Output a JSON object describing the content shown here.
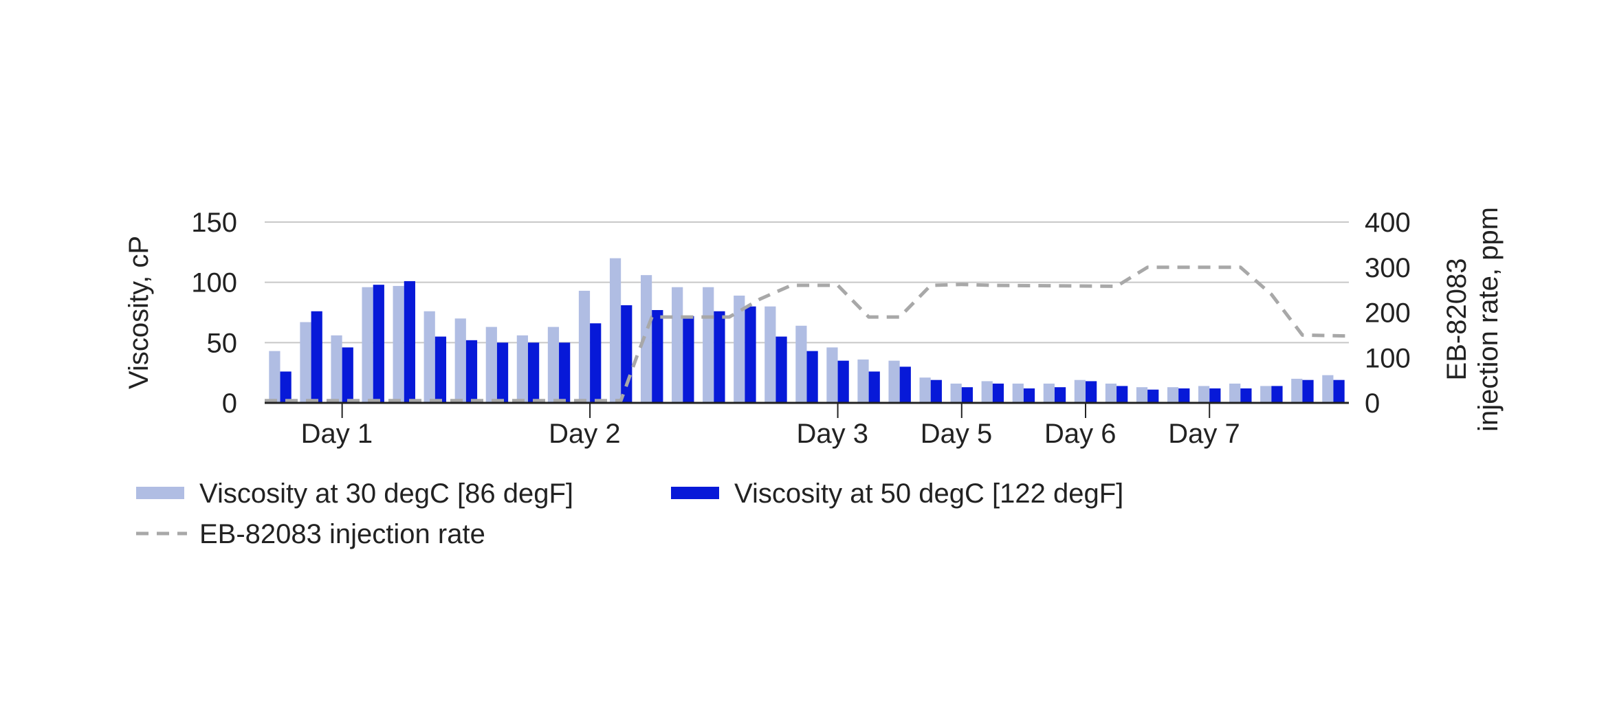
{
  "chart_data": {
    "type": "bar",
    "title": "",
    "x_tick_labels": [
      "Day 1",
      "Day 2",
      "Day 3",
      "Day 5",
      "Day 6",
      "Day 7"
    ],
    "x_tick_positions": [
      2.5,
      10.5,
      18.5,
      22.5,
      26.5,
      30.5
    ],
    "y_left": {
      "label": "Viscosity, cP",
      "range": [
        0,
        150
      ],
      "ticks": [
        0,
        50,
        100,
        150
      ],
      "tick_labels": [
        "0",
        "50",
        "100",
        "150"
      ]
    },
    "y_right": {
      "label_lines": [
        "EB-82083",
        "injection rate, ppm"
      ],
      "range": [
        0,
        400
      ],
      "ticks": [
        0,
        100,
        200,
        300,
        400
      ],
      "tick_labels": [
        "0",
        "100",
        "200",
        "300",
        "400"
      ]
    },
    "grid": {
      "horizontal": true,
      "vertical": false
    },
    "series": [
      {
        "name": "Viscosity at 30 degC [86 degF]",
        "type": "bar",
        "axis": "left",
        "color": "#b0bde3",
        "values": [
          43,
          67,
          56,
          96,
          97,
          76,
          70,
          63,
          56,
          63,
          93,
          120,
          106,
          96,
          96,
          89,
          80,
          64,
          46,
          36,
          35,
          21,
          16,
          18,
          16,
          16,
          19,
          16,
          13,
          13,
          14,
          16,
          14,
          20,
          23
        ]
      },
      {
        "name": "Viscosity at 50 degC [122 degF]",
        "type": "bar",
        "axis": "left",
        "color": "#0719d8",
        "values": [
          26,
          76,
          46,
          98,
          101,
          55,
          52,
          50,
          50,
          50,
          66,
          81,
          77,
          72,
          76,
          80,
          55,
          43,
          35,
          26,
          30,
          19,
          13,
          16,
          12,
          13,
          18,
          14,
          11,
          12,
          12,
          12,
          14,
          19,
          19
        ]
      },
      {
        "name": "EB-82083 injection rate",
        "type": "line",
        "style": "dashed",
        "axis": "right",
        "color": "#a8a8a8",
        "x": [
          0,
          11.5,
          12.0,
          12.5,
          15.0,
          16.0,
          17.0,
          18.5,
          19.5,
          20.5,
          21.5,
          22.5,
          23.5,
          27.5,
          28.5,
          31.5,
          32.5,
          33.5,
          35.0
        ],
        "values": [
          5,
          5,
          100,
          190,
          190,
          230,
          260,
          260,
          190,
          190,
          260,
          262,
          260,
          258,
          300,
          300,
          240,
          150,
          148
        ]
      }
    ],
    "legend": {
      "placement": "bottom-left",
      "entries": [
        {
          "label": "Viscosity at 30 degC [86 degF]",
          "color": "#b0bde3",
          "kind": "bar"
        },
        {
          "label": "Viscosity at 50 degC [122 degF]",
          "color": "#0719d8",
          "kind": "bar"
        },
        {
          "label": "EB-82083 injection rate",
          "color": "#a8a8a8",
          "kind": "dashed-line"
        }
      ]
    },
    "colors": {
      "grid": "#c8c8c8",
      "axis": "#222222",
      "text": "#222222"
    }
  }
}
